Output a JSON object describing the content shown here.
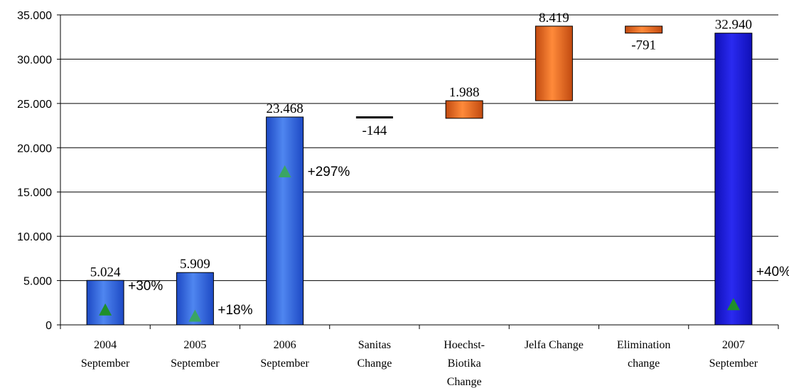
{
  "chart_data": {
    "type": "bar",
    "subtype": "waterfall",
    "categories": [
      [
        "2004",
        "September"
      ],
      [
        "2005",
        "September"
      ],
      [
        "2006",
        "September"
      ],
      [
        "Sanitas",
        "Change"
      ],
      [
        "Hoechst-",
        "Biotika",
        "Change"
      ],
      [
        "Jelfa Change"
      ],
      [
        "Elimination",
        "change"
      ],
      [
        "2007",
        "September"
      ]
    ],
    "bars": [
      {
        "kind": "total",
        "base": 0,
        "value": 5024,
        "label": "5.024",
        "growth": "+30%",
        "growth_marker": 1700,
        "color": "blue"
      },
      {
        "kind": "total",
        "base": 0,
        "value": 5909,
        "label": "5.909",
        "growth": "+18%",
        "growth_marker": 1000,
        "color": "blue"
      },
      {
        "kind": "total",
        "base": 0,
        "value": 23468,
        "label": "23.468",
        "growth": "+297%",
        "growth_marker": 17300,
        "color": "blue"
      },
      {
        "kind": "change",
        "base": 23468,
        "value": -144,
        "label": "-144",
        "color": "black"
      },
      {
        "kind": "change",
        "base": 23324,
        "value": 1988,
        "label": "1.988",
        "color": "orange"
      },
      {
        "kind": "change",
        "base": 25312,
        "value": 8419,
        "label": "8.419",
        "color": "orange"
      },
      {
        "kind": "change",
        "base": 33731,
        "value": -791,
        "label": "-791",
        "color": "orange"
      },
      {
        "kind": "total",
        "base": 0,
        "value": 32940,
        "label": "32.940",
        "growth": "+40%",
        "growth_marker": 2300,
        "color": "darkblue"
      }
    ],
    "ylim": [
      0,
      35000
    ],
    "yticks": [
      0,
      5000,
      10000,
      15000,
      20000,
      25000,
      30000,
      35000
    ],
    "ytick_labels": [
      "0",
      "5.000",
      "10.000",
      "15.000",
      "20.000",
      "25.000",
      "30.000",
      "35.000"
    ],
    "grid": true,
    "colors": {
      "blue": "#2f5fd8",
      "darkblue": "#1a1ad0",
      "orange": "#e8661a",
      "marker": "#1f8f2a",
      "marker_light": "#3aa564"
    }
  }
}
